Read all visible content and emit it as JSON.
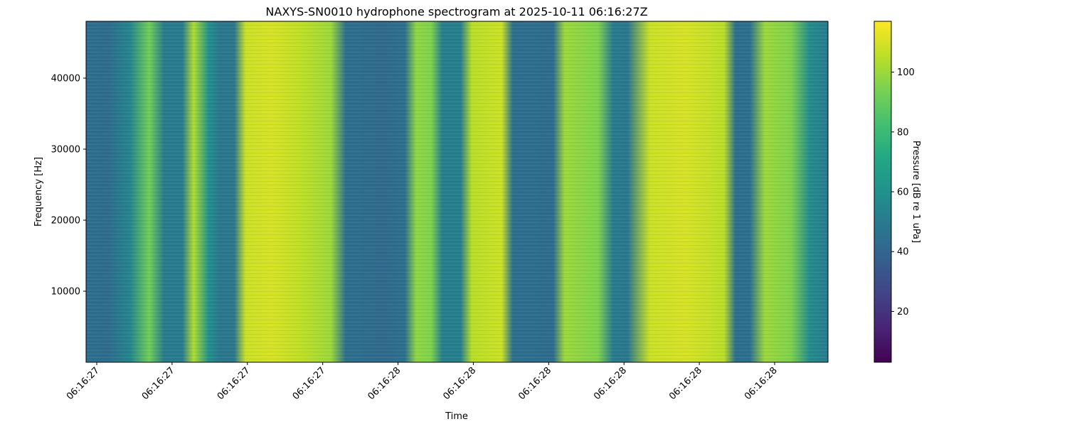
{
  "chart_data": {
    "type": "heatmap",
    "title": "NAXYS-SN0010 hydrophone spectrogram at 2025-10-11 06:16:27Z",
    "xlabel": "Time",
    "ylabel": "Frequency [Hz]",
    "x_tick_labels": [
      "06:16:27",
      "06:16:27",
      "06:16:27",
      "06:16:27",
      "06:16:28",
      "06:16:28",
      "06:16:28",
      "06:16:28",
      "06:16:28",
      "06:16:28"
    ],
    "y_ticks": [
      10000,
      20000,
      30000,
      40000
    ],
    "y_tick_labels": [
      "10000",
      "20000",
      "30000",
      "40000"
    ],
    "ylim": [
      0,
      48000
    ],
    "colorbar": {
      "label": "Pressure [dB re 1 uPa]",
      "ticks": [
        20,
        40,
        60,
        80,
        100
      ],
      "tick_labels": [
        "20",
        "40",
        "60",
        "80",
        "100"
      ],
      "range": [
        3,
        117
      ],
      "colormap": "viridis"
    },
    "time_bands_dB": [
      {
        "t": 0.0,
        "db": 45
      },
      {
        "t": 0.03,
        "db": 43
      },
      {
        "t": 0.06,
        "db": 55
      },
      {
        "t": 0.085,
        "db": 92
      },
      {
        "t": 0.105,
        "db": 50
      },
      {
        "t": 0.13,
        "db": 50
      },
      {
        "t": 0.145,
        "db": 103
      },
      {
        "t": 0.165,
        "db": 60
      },
      {
        "t": 0.18,
        "db": 48
      },
      {
        "t": 0.2,
        "db": 48
      },
      {
        "t": 0.215,
        "db": 108
      },
      {
        "t": 0.25,
        "db": 110
      },
      {
        "t": 0.29,
        "db": 106
      },
      {
        "t": 0.33,
        "db": 100
      },
      {
        "t": 0.35,
        "db": 45
      },
      {
        "t": 0.4,
        "db": 42
      },
      {
        "t": 0.43,
        "db": 45
      },
      {
        "t": 0.445,
        "db": 98
      },
      {
        "t": 0.465,
        "db": 95
      },
      {
        "t": 0.48,
        "db": 52
      },
      {
        "t": 0.505,
        "db": 52
      },
      {
        "t": 0.52,
        "db": 105
      },
      {
        "t": 0.56,
        "db": 108
      },
      {
        "t": 0.575,
        "db": 45
      },
      {
        "t": 0.63,
        "db": 43
      },
      {
        "t": 0.645,
        "db": 100
      },
      {
        "t": 0.69,
        "db": 95
      },
      {
        "t": 0.71,
        "db": 50
      },
      {
        "t": 0.73,
        "db": 48
      },
      {
        "t": 0.76,
        "db": 108
      },
      {
        "t": 0.81,
        "db": 110
      },
      {
        "t": 0.86,
        "db": 105
      },
      {
        "t": 0.875,
        "db": 45
      },
      {
        "t": 0.895,
        "db": 45
      },
      {
        "t": 0.915,
        "db": 100
      },
      {
        "t": 0.95,
        "db": 95
      },
      {
        "t": 0.975,
        "db": 58
      },
      {
        "t": 1.0,
        "db": 50
      }
    ]
  }
}
